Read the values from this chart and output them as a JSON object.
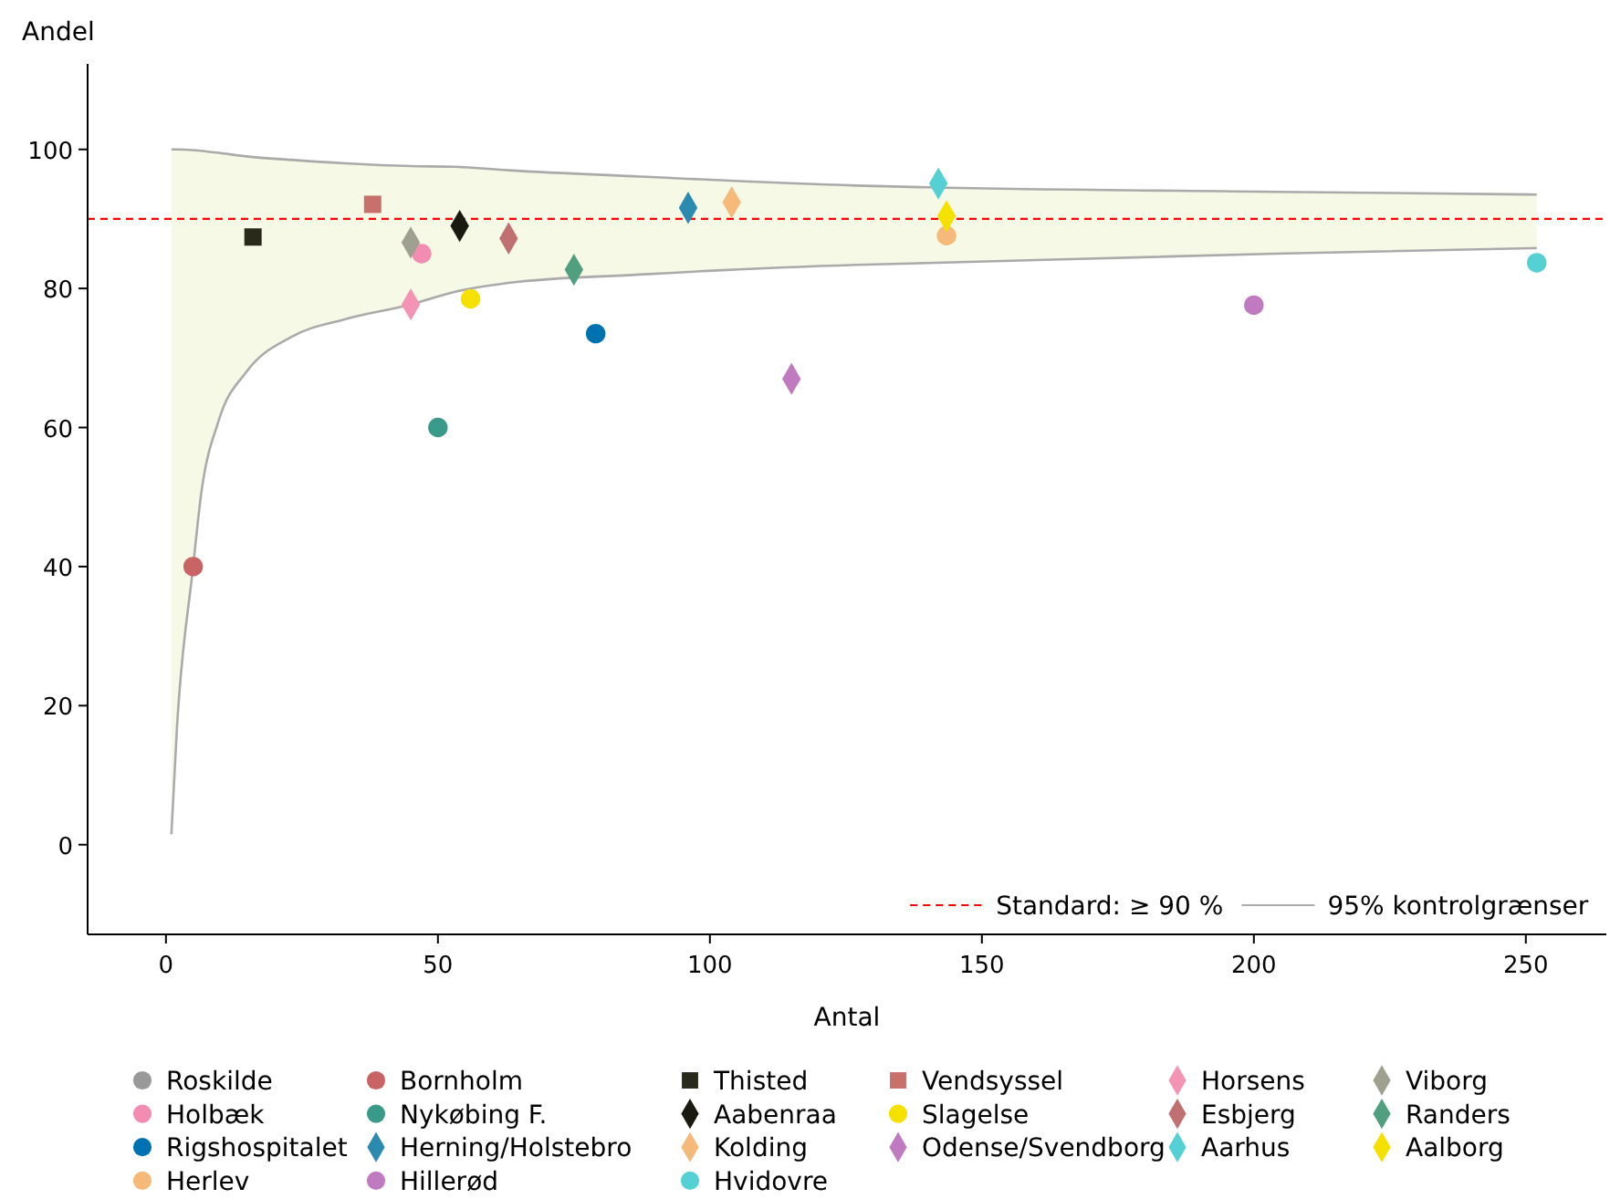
{
  "chart_data": {
    "type": "scatter",
    "xlabel": "Antal",
    "ylabel": "Andel",
    "xlim": [
      -14.4,
      264.8
    ],
    "ylim": [
      -12.9,
      112.3
    ],
    "xticks": [
      0,
      50,
      100,
      150,
      200,
      250
    ],
    "yticks": [
      0,
      20,
      40,
      60,
      80,
      100
    ],
    "legend": "bottom",
    "ref_lines": [
      {
        "axis": "y",
        "value": 90,
        "label": "Standard: ≥ 90 %",
        "color": "#ff0000",
        "line_style": "dashed"
      }
    ],
    "series": [
      {
        "type": "line",
        "name": "95% kontrolgrænser",
        "color": "#aaaaaa",
        "marker": "none",
        "x": [
          1,
          2,
          5,
          6.4,
          9.7,
          14.8,
          23,
          33,
          45,
          53,
          63,
          87,
          127,
          137,
          204,
          252
        ],
        "values": [
          100,
          100,
          99.9,
          99.8,
          99.5,
          99,
          98.5,
          98,
          97.6,
          97.5,
          97,
          96.1,
          94.8,
          94.6,
          93.9,
          93.5
        ],
        "lower": [
          1.5,
          16.5,
          40,
          50,
          61,
          68,
          73,
          75.6,
          77.7,
          79.5,
          80.8,
          82,
          83.4,
          83.6,
          85,
          85.8
        ],
        "upper": [
          100,
          100,
          99.9,
          99.8,
          99.5,
          99,
          98.5,
          98,
          97.6,
          97.5,
          97,
          96.1,
          94.8,
          94.6,
          93.9,
          93.5
        ]
      },
      {
        "type": "line",
        "color": "#aaaaaa",
        "x": [
          1,
          2,
          5,
          6.4,
          9.7,
          14.8,
          23,
          33,
          45,
          53,
          63,
          87,
          127,
          137,
          204,
          252
        ],
        "values": [
          1.5,
          16.5,
          40,
          50,
          61,
          68,
          73,
          75.6,
          77.7,
          79.5,
          80.8,
          82,
          83.4,
          83.6,
          85,
          85.8
        ]
      },
      {
        "name": "Roskilde",
        "color": "#999999",
        "marker": "circle",
        "x": [
          null
        ],
        "values": [
          null
        ]
      },
      {
        "name": "Holbæk",
        "color": "#f28cb1",
        "marker": "circle",
        "x": [
          47
        ],
        "values": [
          85
        ]
      },
      {
        "name": "Rigshospitalet",
        "color": "#0072b2",
        "marker": "circle",
        "x": [
          79
        ],
        "values": [
          73.5
        ]
      },
      {
        "name": "Herlev",
        "color": "#f5b97a",
        "marker": "circle",
        "x": [
          143.5
        ],
        "values": [
          87.6
        ]
      },
      {
        "name": "Bornholm",
        "color": "#c86464",
        "marker": "circle",
        "x": [
          5
        ],
        "values": [
          40
        ]
      },
      {
        "name": "Nykøbing F.",
        "color": "#3a9a8a",
        "marker": "circle",
        "x": [
          50
        ],
        "values": [
          60
        ]
      },
      {
        "name": "Herning/Holstebro",
        "color": "#2a8ab0",
        "marker": "diamond",
        "x": [
          96
        ],
        "values": [
          91.6
        ]
      },
      {
        "name": "Hillerød",
        "color": "#c07ac0",
        "marker": "circle",
        "x": [
          200
        ],
        "values": [
          77.6
        ]
      },
      {
        "name": "Thisted",
        "color": "#2a2a1a",
        "marker": "square",
        "x": [
          16
        ],
        "values": [
          87.4
        ]
      },
      {
        "name": "Aabenraa",
        "color": "#1a1a10",
        "marker": "diamond",
        "x": [
          54
        ],
        "values": [
          89
        ]
      },
      {
        "name": "Kolding",
        "color": "#f5b97a",
        "marker": "diamond",
        "x": [
          104
        ],
        "values": [
          92.4
        ]
      },
      {
        "name": "Hvidovre",
        "color": "#55d0d5",
        "marker": "circle",
        "x": [
          252
        ],
        "values": [
          83.7
        ]
      },
      {
        "name": "Vendsyssel",
        "color": "#c8706a",
        "marker": "square",
        "x": [
          38
        ],
        "values": [
          92.1
        ]
      },
      {
        "name": "Slagelse",
        "color": "#f5e000",
        "marker": "circle",
        "x": [
          56
        ],
        "values": [
          78.5
        ]
      },
      {
        "name": "Odense/Svendborg",
        "color": "#c07ac0",
        "marker": "diamond",
        "x": [
          115
        ],
        "values": [
          67
        ]
      },
      {
        "name": "Horsens",
        "color": "#f593b5",
        "marker": "diamond",
        "x": [
          45
        ],
        "values": [
          77.7
        ]
      },
      {
        "name": "Esbjerg",
        "color": "#c07070",
        "marker": "diamond",
        "x": [
          63
        ],
        "values": [
          87.2
        ]
      },
      {
        "name": "Aarhus",
        "color": "#55d0d5",
        "marker": "diamond",
        "x": [
          142
        ],
        "values": [
          95.1
        ]
      },
      {
        "name": "Viborg",
        "color": "#a0a090",
        "marker": "diamond",
        "x": [
          45
        ],
        "values": [
          86.6
        ]
      },
      {
        "name": "Randers",
        "color": "#50a080",
        "marker": "diamond",
        "x": [
          75
        ],
        "values": [
          82.7
        ]
      },
      {
        "name": "Aalborg",
        "color": "#f5e000",
        "marker": "diamond",
        "x": [
          143.5
        ],
        "values": [
          90.4
        ]
      }
    ]
  }
}
